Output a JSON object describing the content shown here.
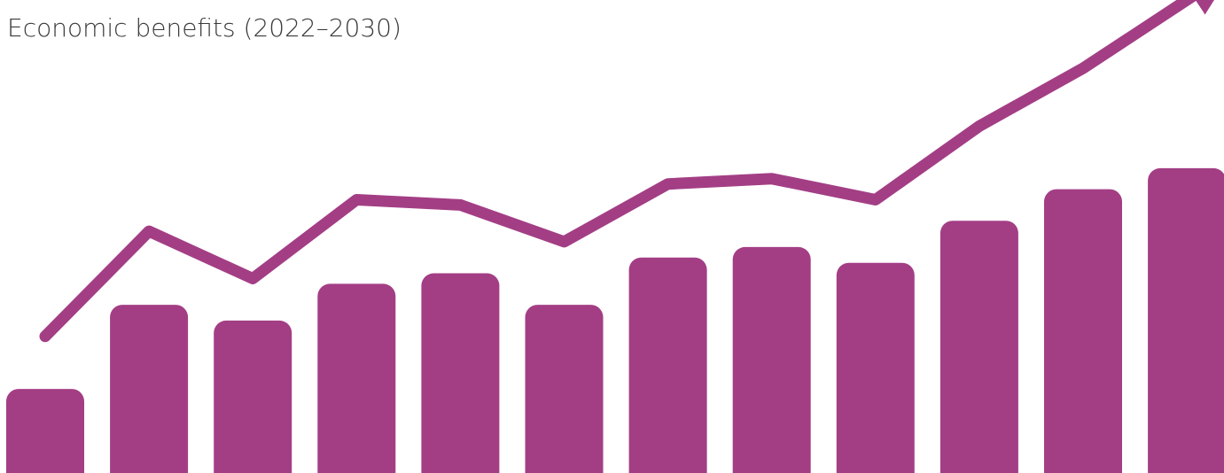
{
  "chart_data": {
    "type": "bar",
    "title": "Economic benefits (2022–2030)",
    "values": [
      1.6,
      3.2,
      2.9,
      3.6,
      3.8,
      3.2,
      4.1,
      4.3,
      4.0,
      4.8,
      5.4,
      5.8
    ],
    "trend": [
      2.6,
      4.6,
      3.7,
      5.2,
      5.1,
      4.4,
      5.5,
      5.6,
      5.2,
      6.6,
      7.7,
      9.0
    ],
    "ylim": [
      0,
      9
    ],
    "grid": false,
    "legend": "none",
    "color": "#a33e85"
  }
}
